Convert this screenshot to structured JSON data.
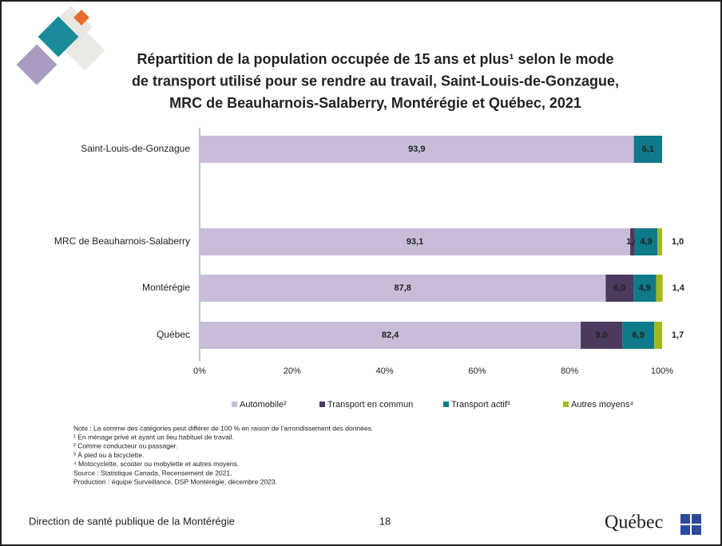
{
  "chart_data": {
    "type": "stacked-bar-horizontal",
    "title_lines": [
      "Répartition de la population occupée de 15 ans et plus¹ selon le mode",
      "de transport utilisé pour se rendre au travail, Saint-Louis-de-Gonzague,",
      "MRC de Beauharnois-Salaberry, Montérégie et Québec, 2021"
    ],
    "categories": [
      "Saint-Louis-de-Gonzague",
      null,
      "MRC de Beauharnois-Salaberry",
      "Montérégie",
      "Québec"
    ],
    "series": [
      {
        "name": "Automobile²",
        "color": "#c9bcd9",
        "values": [
          93.9,
          null,
          93.1,
          87.8,
          82.4
        ],
        "value_labels": [
          "93,9",
          null,
          "93,1",
          "87,8",
          "82,4"
        ]
      },
      {
        "name": "Transport en commun",
        "color": "#4b3a5e",
        "values": [
          null,
          null,
          1.0,
          6.0,
          9.0
        ],
        "value_labels": [
          null,
          null,
          "1,0",
          "6,0",
          "9,0"
        ]
      },
      {
        "name": "Transport actif³",
        "color": "#0e7a8a",
        "values": [
          6.1,
          null,
          4.9,
          4.9,
          6.9
        ],
        "value_labels": [
          "6,1",
          null,
          "4,9",
          "4,9",
          "6,9"
        ]
      },
      {
        "name": "Autres moyens⁴",
        "color": "#a3b81d",
        "values": [
          null,
          null,
          1.0,
          1.4,
          1.7
        ],
        "value_labels": [
          null,
          null,
          "1,0",
          "1,4",
          "1,7"
        ]
      }
    ],
    "xlim": [
      0,
      100
    ],
    "xticks": [
      {
        "value": 0,
        "label": "0%"
      },
      {
        "value": 20,
        "label": "20%"
      },
      {
        "value": 40,
        "label": "40%"
      },
      {
        "value": 60,
        "label": "60%"
      },
      {
        "value": 80,
        "label": "80%"
      },
      {
        "value": 100,
        "label": "100%"
      }
    ],
    "legend": "bottom"
  },
  "notes": [
    "Note : La somme des catégories peut différer de 100 % en raison de l'arrondissement des données.",
    "¹ En ménage privé et ayant un lieu habituel de travail.",
    "² Comme conducteur ou passager.",
    "³ À pied ou à bicyclette.",
    "⁴ Motocyclette, scooter ou mobylette et autres moyens.",
    "Source : Statistique Canada, Recensement de 2021.",
    "Production : équipe Surveillance, DSP Montérégie, décembre 2023."
  ],
  "footer": {
    "organization": "Direction de santé publique de la Montérégie",
    "page": "18",
    "logo": "Québec"
  }
}
